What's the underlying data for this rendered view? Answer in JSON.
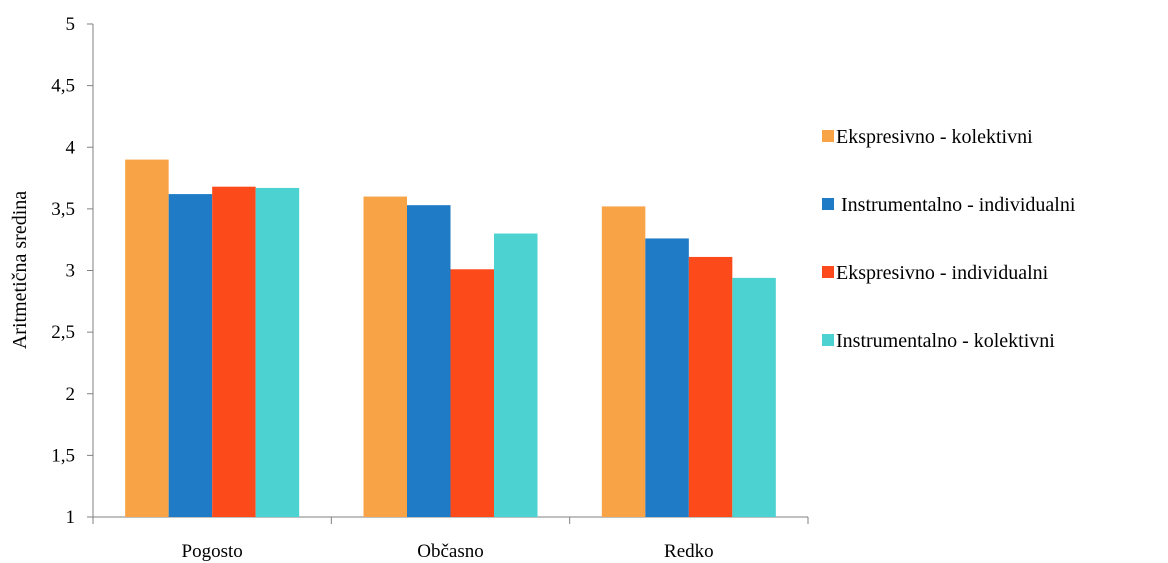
{
  "chart_data": {
    "type": "bar",
    "title": "",
    "xlabel": "",
    "ylabel": "Aritmetična sredina",
    "ylim": [
      1,
      5
    ],
    "ytick_step": 0.5,
    "ytick_labels": [
      "1",
      "1,5",
      "2",
      "2,5",
      "3",
      "3,5",
      "4",
      "4,5",
      "5"
    ],
    "grid": false,
    "legend_position": "right",
    "categories": [
      "Pogosto",
      "Občasno",
      "Redko"
    ],
    "series": [
      {
        "name": "Ekspresivno - kolektivni",
        "color": "#F9A347",
        "values": [
          3.9,
          3.6,
          3.52
        ]
      },
      {
        "name": " Instrumentalno - individualni",
        "color": "#1F7BC6",
        "values": [
          3.62,
          3.53,
          3.26
        ]
      },
      {
        "name": "Ekspresivno - individualni",
        "color": "#FC4A1A",
        "values": [
          3.68,
          3.01,
          3.11
        ]
      },
      {
        "name": "Instrumentalno - kolektivni",
        "color": "#4CD2D0",
        "values": [
          3.67,
          3.3,
          2.94
        ]
      }
    ]
  }
}
